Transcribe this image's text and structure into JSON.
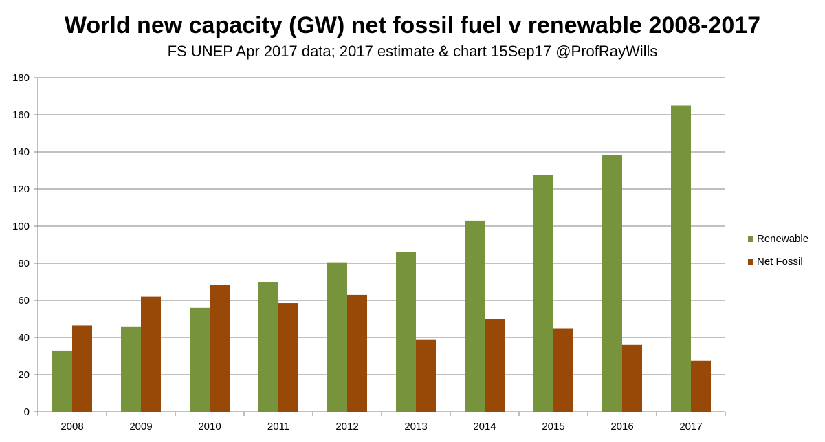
{
  "chart_data": {
    "type": "bar",
    "title": "World new capacity (GW) net fossil fuel v renewable 2008-2017",
    "subtitle": "FS UNEP Apr 2017 data;  2017 estimate & chart 15Sep17 @ProfRayWills",
    "xlabel": "",
    "ylabel": "",
    "categories": [
      "2008",
      "2009",
      "2010",
      "2011",
      "2012",
      "2013",
      "2014",
      "2015",
      "2016",
      "2017"
    ],
    "series": [
      {
        "name": "Renewable",
        "color": "#77933C",
        "values": [
          33,
          46,
          56,
          70,
          80.5,
          86,
          103,
          127.5,
          138.5,
          165
        ]
      },
      {
        "name": "Net Fossil",
        "color": "#984807",
        "values": [
          46.5,
          62,
          68.5,
          58.5,
          63,
          39,
          50,
          45,
          36,
          27.5
        ]
      }
    ],
    "ylim": [
      0,
      180
    ],
    "yticks": [
      0,
      20,
      40,
      60,
      80,
      100,
      120,
      140,
      160,
      180
    ],
    "grid": true,
    "legend_position": "right"
  }
}
